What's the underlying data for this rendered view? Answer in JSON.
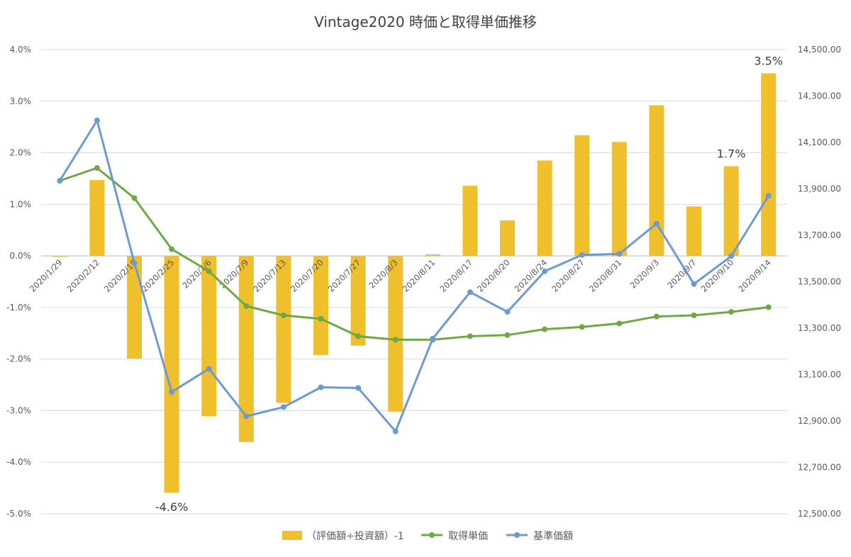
{
  "colors": {
    "bar": "#F0C02C",
    "acquisition": "#70A845",
    "nav": "#6E9AD2",
    "grid": "#D9D9D9",
    "text": "#404040"
  },
  "chart_data": {
    "type": "bar+line",
    "title": "Vintage2020 時価と取得単価推移",
    "categories": [
      "2020/1/29",
      "2020/2/12",
      "2020/2/19",
      "2020/2/25",
      "2020/7/6",
      "2020/7/9",
      "2020/7/13",
      "2020/7/20",
      "2020/7/27",
      "2020/8/3",
      "2020/8/11",
      "2020/8/17",
      "2020/8/20",
      "2020/8/24",
      "2020/8/27",
      "2020/8/31",
      "2020/9/3",
      "2020/9/7",
      "2020/9/10",
      "2020/9/14"
    ],
    "y_left": {
      "min": -5.0,
      "max": 4.0,
      "step": 1.0,
      "unit": "%",
      "ticks": [
        "4.0%",
        "3.0%",
        "2.0%",
        "1.0%",
        "0.0%",
        "-1.0%",
        "-2.0%",
        "-3.0%",
        "-4.0%",
        "-5.0%"
      ]
    },
    "y_right": {
      "min": 12500,
      "max": 14500,
      "step": 200,
      "ticks": [
        "14,500.00",
        "14,300.00",
        "14,100.00",
        "13,900.00",
        "13,700.00",
        "13,500.00",
        "13,300.00",
        "13,100.00",
        "12,900.00",
        "12,700.00",
        "12,500.00"
      ]
    },
    "series": [
      {
        "name": "（評価額÷投資額）-1",
        "type": "bar",
        "axis": "left",
        "values": [
          -0.02,
          1.47,
          -1.99,
          -4.59,
          -3.11,
          -3.61,
          -2.85,
          -1.92,
          -1.74,
          -3.02,
          0.03,
          1.36,
          0.69,
          1.85,
          2.34,
          2.21,
          2.92,
          0.96,
          1.74,
          3.54
        ]
      },
      {
        "name": "取得単価",
        "type": "line",
        "axis": "right",
        "values": [
          13935,
          13990,
          13860,
          13640,
          13545,
          13395,
          13355,
          13340,
          13265,
          13250,
          13250,
          13265,
          13270,
          13295,
          13305,
          13320,
          13350,
          13355,
          13370,
          13390
        ]
      },
      {
        "name": "基準価額",
        "type": "line",
        "axis": "right",
        "values": [
          13935,
          14195,
          13580,
          13025,
          13125,
          12920,
          12960,
          13045,
          13042,
          12855,
          13255,
          13455,
          13370,
          13545,
          13615,
          13620,
          13750,
          13490,
          13610,
          13870
        ]
      }
    ],
    "data_labels": [
      {
        "series": 0,
        "index": 3,
        "text": "-4.6%"
      },
      {
        "series": 0,
        "index": 18,
        "text": "1.7%"
      },
      {
        "series": 0,
        "index": 19,
        "text": "3.5%"
      }
    ],
    "legend_position": "bottom",
    "grid": true
  }
}
